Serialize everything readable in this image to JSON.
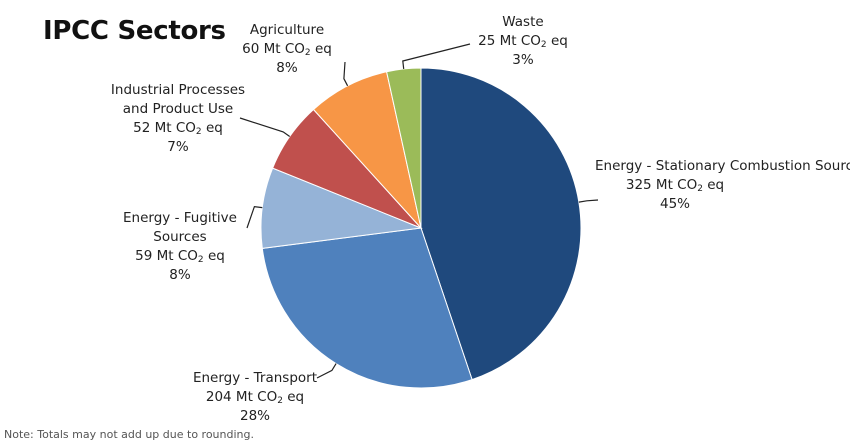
{
  "chart_data": {
    "type": "pie",
    "title": "IPCC Sectors",
    "unit": "Mt CO2 eq",
    "slices": [
      {
        "label": "Energy - Stationary Combustion Sources",
        "value": 325,
        "percent": "45%",
        "color": "#1f497d"
      },
      {
        "label": "Energy - Transport",
        "value": 204,
        "percent": "28%",
        "color": "#4f81bd"
      },
      {
        "label": "Energy - Fugitive Sources",
        "value": 59,
        "percent": "8%",
        "color": "#95b3d7"
      },
      {
        "label": "Industrial Processes and Product Use",
        "value": 52,
        "percent": "7%",
        "color": "#c0504d"
      },
      {
        "label": "Agriculture",
        "value": 60,
        "percent": "8%",
        "color": "#f79646"
      },
      {
        "label": "Waste",
        "value": 25,
        "percent": "3%",
        "color": "#9bbb59"
      }
    ],
    "footnote": "Note: Totals may not add up due to rounding."
  }
}
